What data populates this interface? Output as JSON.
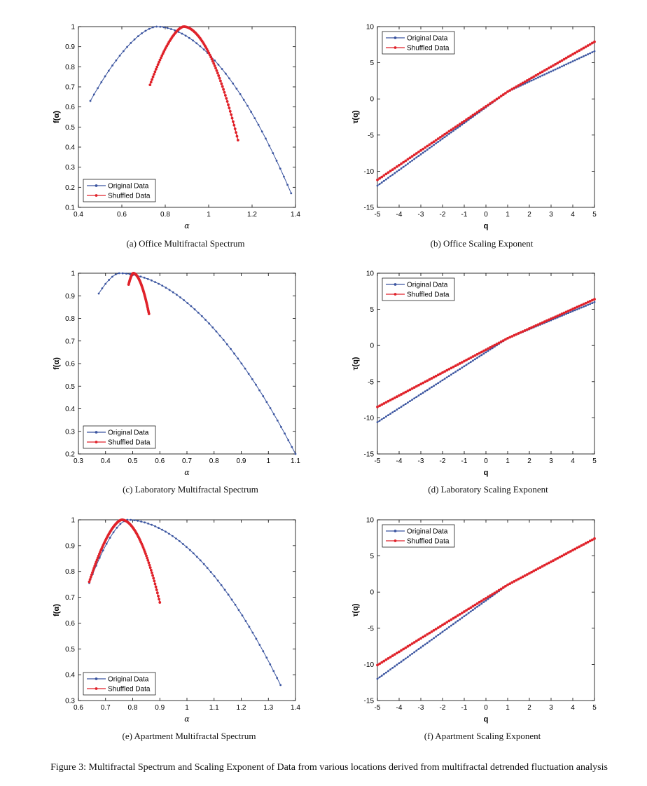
{
  "figure_caption": "Figure 3: Multifractal Spectrum and Scaling Exponent of Data from various locations derived from multifractal detrended fluctuation analysis",
  "colors": {
    "original": "#3b55a0",
    "shuffled": "#e0222a"
  },
  "legend": {
    "original": "Original Data",
    "shuffled": "Shuffled Data"
  },
  "chart_data": [
    {
      "id": "a",
      "type": "line",
      "caption": "(a)  Office Multifractal Spectrum",
      "xlabel": "α",
      "ylabel": "f(α)",
      "xlim": [
        0.4,
        1.4
      ],
      "ylim": [
        0.1,
        1.0
      ],
      "xticks": [
        0.4,
        0.6,
        0.8,
        1.0,
        1.2,
        1.4
      ],
      "xticklabels": [
        "0.4",
        "0.6",
        "0.8",
        "1",
        "1.2",
        "1.4"
      ],
      "yticks": [
        0.1,
        0.2,
        0.3,
        0.4,
        0.5,
        0.6,
        0.7,
        0.8,
        0.9,
        1.0
      ],
      "yticklabels": [
        "0.1",
        "0.2",
        "0.3",
        "0.4",
        "0.5",
        "0.6",
        "0.7",
        "0.8",
        "0.9",
        "1"
      ],
      "legend_position": "bottom-left",
      "series": [
        {
          "name": "Original Data",
          "curve": "spectrum",
          "a_min": 0.455,
          "a_peak": 0.76,
          "a_max": 1.38,
          "f_left": 0.63,
          "f_right": 0.17,
          "n": 55
        },
        {
          "name": "Shuffled Data",
          "curve": "spectrum",
          "a_min": 0.73,
          "a_peak": 0.885,
          "a_max": 1.135,
          "f_left": 0.71,
          "f_right": 0.435,
          "n": 90
        }
      ]
    },
    {
      "id": "b",
      "type": "line",
      "caption": "(b)  Office Scaling Exponent",
      "xlabel": "q",
      "ylabel": "τ(q)",
      "xlim": [
        -5,
        5
      ],
      "ylim": [
        -15,
        10
      ],
      "xticks": [
        -5,
        -4,
        -3,
        -2,
        -1,
        0,
        1,
        2,
        3,
        4,
        5
      ],
      "xticklabels": [
        "-5",
        "-4",
        "-3",
        "-2",
        "-1",
        "0",
        "1",
        "2",
        "3",
        "4",
        "5"
      ],
      "yticks": [
        -15,
        -10,
        -5,
        0,
        5,
        10
      ],
      "yticklabels": [
        "-15",
        "-10",
        "-5",
        "0",
        "5",
        "10"
      ],
      "legend_position": "top-left",
      "series": [
        {
          "name": "Original Data",
          "curve": "scaling",
          "y_left": -12.0,
          "y_mid": 1.0,
          "y_right": 6.6,
          "n": 100
        },
        {
          "name": "Shuffled Data",
          "curve": "scaling",
          "y_left": -11.2,
          "y_mid": 1.0,
          "y_right": 7.9,
          "n": 100
        }
      ]
    },
    {
      "id": "c",
      "type": "line",
      "caption": "(c)  Laboratory Multifractal Spectrum",
      "xlabel": "α",
      "ylabel": "f(α)",
      "xlim": [
        0.3,
        1.1
      ],
      "ylim": [
        0.2,
        1.0
      ],
      "xticks": [
        0.3,
        0.4,
        0.5,
        0.6,
        0.7,
        0.8,
        0.9,
        1.0,
        1.1
      ],
      "xticklabels": [
        "0.3",
        "0.4",
        "0.5",
        "0.6",
        "0.7",
        "0.8",
        "0.9",
        "1",
        "1.1"
      ],
      "yticks": [
        0.2,
        0.3,
        0.4,
        0.5,
        0.6,
        0.7,
        0.8,
        0.9,
        1.0
      ],
      "yticklabels": [
        "0.2",
        "0.3",
        "0.4",
        "0.5",
        "0.6",
        "0.7",
        "0.8",
        "0.9",
        "1"
      ],
      "legend_position": "bottom-left",
      "series": [
        {
          "name": "Original Data",
          "curve": "spectrum",
          "a_min": 0.375,
          "a_peak": 0.45,
          "a_max": 1.1,
          "f_left": 0.91,
          "f_right": 0.2,
          "n": 55
        },
        {
          "name": "Shuffled Data",
          "curve": "spectrum",
          "a_min": 0.485,
          "a_peak": 0.502,
          "a_max": 0.56,
          "f_left": 0.95,
          "f_right": 0.82,
          "n": 60
        }
      ]
    },
    {
      "id": "d",
      "type": "line",
      "caption": "(d)  Laboratory Scaling Exponent",
      "xlabel": "q",
      "ylabel": "τ(q)",
      "xlim": [
        -5,
        5
      ],
      "ylim": [
        -15,
        10
      ],
      "xticks": [
        -5,
        -4,
        -3,
        -2,
        -1,
        0,
        1,
        2,
        3,
        4,
        5
      ],
      "xticklabels": [
        "-5",
        "-4",
        "-3",
        "-2",
        "-1",
        "0",
        "1",
        "2",
        "3",
        "4",
        "5"
      ],
      "yticks": [
        -15,
        -10,
        -5,
        0,
        5,
        10
      ],
      "yticklabels": [
        "-15",
        "-10",
        "-5",
        "0",
        "5",
        "10"
      ],
      "legend_position": "top-left",
      "series": [
        {
          "name": "Original Data",
          "curve": "scaling",
          "y_left": -10.6,
          "y_mid": 1.0,
          "y_right": 6.0,
          "n": 100
        },
        {
          "name": "Shuffled Data",
          "curve": "scaling",
          "y_left": -8.5,
          "y_mid": 1.0,
          "y_right": 6.4,
          "n": 100
        }
      ]
    },
    {
      "id": "e",
      "type": "line",
      "caption": "(e)  Apartment Multifractal Spectrum",
      "xlabel": "α",
      "ylabel": "f(α)",
      "xlim": [
        0.6,
        1.4
      ],
      "ylim": [
        0.3,
        1.0
      ],
      "xticks": [
        0.6,
        0.7,
        0.8,
        0.9,
        1.0,
        1.1,
        1.2,
        1.3,
        1.4
      ],
      "xticklabels": [
        "0.6",
        "0.7",
        "0.8",
        "0.9",
        "1",
        "1.1",
        "1.2",
        "1.3",
        "1.4"
      ],
      "yticks": [
        0.3,
        0.4,
        0.5,
        0.6,
        0.7,
        0.8,
        0.9,
        1.0
      ],
      "yticklabels": [
        "0.3",
        "0.4",
        "0.5",
        "0.6",
        "0.7",
        "0.8",
        "0.9",
        "1"
      ],
      "legend_position": "bottom-left",
      "series": [
        {
          "name": "Original Data",
          "curve": "spectrum",
          "a_min": 0.64,
          "a_peak": 0.78,
          "a_max": 1.345,
          "f_left": 0.755,
          "f_right": 0.36,
          "n": 55
        },
        {
          "name": "Shuffled Data",
          "curve": "spectrum",
          "a_min": 0.64,
          "a_peak": 0.76,
          "a_max": 0.9,
          "f_left": 0.76,
          "f_right": 0.68,
          "n": 90
        }
      ]
    },
    {
      "id": "f",
      "type": "line",
      "caption": "(f)  Apartment Scaling Exponent",
      "xlabel": "q",
      "ylabel": "τ(q)",
      "xlim": [
        -5,
        5
      ],
      "ylim": [
        -15,
        10
      ],
      "xticks": [
        -5,
        -4,
        -3,
        -2,
        -1,
        0,
        1,
        2,
        3,
        4,
        5
      ],
      "xticklabels": [
        "-5",
        "-4",
        "-3",
        "-2",
        "-1",
        "0",
        "1",
        "2",
        "3",
        "4",
        "5"
      ],
      "yticks": [
        -15,
        -10,
        -5,
        0,
        5,
        10
      ],
      "yticklabels": [
        "-15",
        "-10",
        "-5",
        "0",
        "5",
        "10"
      ],
      "legend_position": "top-left",
      "series": [
        {
          "name": "Original Data",
          "curve": "scaling",
          "y_left": -12.0,
          "y_mid": 1.0,
          "y_right": 7.4,
          "n": 100
        },
        {
          "name": "Shuffled Data",
          "curve": "scaling",
          "y_left": -10.1,
          "y_mid": 1.0,
          "y_right": 7.4,
          "n": 100
        }
      ]
    }
  ]
}
